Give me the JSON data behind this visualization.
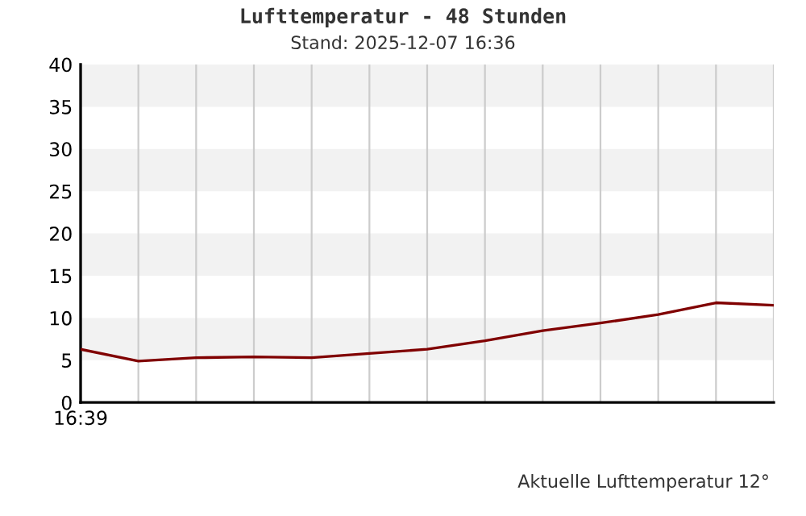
{
  "chart_data": {
    "type": "line",
    "title": "Lufttemperatur - 48 Stunden",
    "subtitle": "Stand: 2025-12-07 16:36",
    "annotations": [
      "Aktuelle Lufttemperatur 12°"
    ],
    "categories": [
      "16:39",
      null,
      null,
      null,
      null,
      null,
      null,
      null,
      null,
      null,
      null,
      null,
      null
    ],
    "series": [
      {
        "color": "#800000",
        "values": [
          6.3,
          4.9,
          5.3,
          5.4,
          5.3,
          5.8,
          6.3,
          7.3,
          8.5,
          9.4,
          10.4,
          11.8,
          11.5
        ]
      }
    ],
    "ylim": [
      0,
      40
    ],
    "yticks": [
      0,
      5,
      10,
      15,
      20,
      25,
      30,
      35,
      40
    ],
    "bands": [
      {
        "axis": "y",
        "from": 5,
        "to": 10,
        "color": "#f2f2f2"
      },
      {
        "axis": "y",
        "from": 15,
        "to": 20,
        "color": "#f2f2f2"
      },
      {
        "axis": "y",
        "from": 25,
        "to": 30,
        "color": "#f2f2f2"
      },
      {
        "axis": "y",
        "from": 35,
        "to": 40,
        "color": "#f2f2f2"
      }
    ],
    "grid": "x",
    "marker": "none",
    "line_style": "solid"
  }
}
